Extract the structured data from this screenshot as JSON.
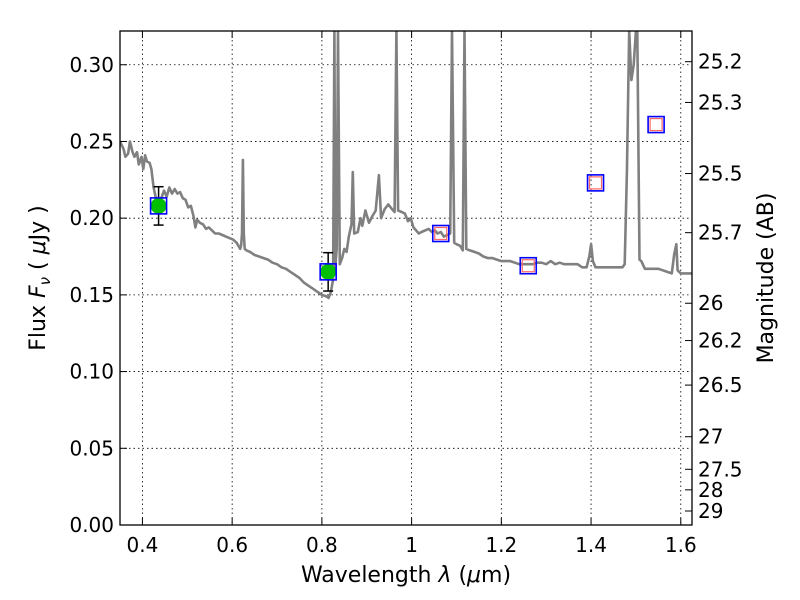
{
  "chart_data": {
    "type": "scatter",
    "title": "",
    "xlabel": {
      "prefix": "Wavelength ",
      "symbol": "λ",
      "unit_open": " (",
      "unit_mu": "μ",
      "unit_rest": "m)"
    },
    "ylabel": {
      "prefix": "Flux ",
      "symbol": "F",
      "sub": "ν",
      "unit_open": " ( ",
      "unit_mu": "μ",
      "unit_rest": "Jy )"
    },
    "ylabel_right": "Magnitude (AB)",
    "xlim": [
      0.35,
      1.625
    ],
    "ylim": [
      0.0,
      0.322
    ],
    "grid": true,
    "x_ticks": [
      {
        "v": 0.4,
        "label": "0.4"
      },
      {
        "v": 0.6,
        "label": "0.6"
      },
      {
        "v": 0.8,
        "label": "0.8"
      },
      {
        "v": 1.0,
        "label": "1"
      },
      {
        "v": 1.2,
        "label": "1.2"
      },
      {
        "v": 1.4,
        "label": "1.4"
      },
      {
        "v": 1.6,
        "label": "1.6"
      }
    ],
    "y_ticks": [
      {
        "v": 0.0,
        "label": "0.00"
      },
      {
        "v": 0.05,
        "label": "0.05"
      },
      {
        "v": 0.1,
        "label": "0.10"
      },
      {
        "v": 0.15,
        "label": "0.15"
      },
      {
        "v": 0.2,
        "label": "0.20"
      },
      {
        "v": 0.25,
        "label": "0.25"
      },
      {
        "v": 0.3,
        "label": "0.30"
      }
    ],
    "mag_ticks": [
      {
        "mag": 25.2,
        "label": "25.2"
      },
      {
        "mag": 25.3,
        "label": "25.3"
      },
      {
        "mag": 25.5,
        "label": "25.5"
      },
      {
        "mag": 25.7,
        "label": "25.7"
      },
      {
        "mag": 26.0,
        "label": "26"
      },
      {
        "mag": 26.2,
        "label": "26.2"
      },
      {
        "mag": 26.5,
        "label": "26.5"
      },
      {
        "mag": 27.0,
        "label": "27"
      },
      {
        "mag": 27.5,
        "label": "27.5"
      },
      {
        "mag": 28.0,
        "label": "28"
      },
      {
        "mag": 29.0,
        "label": "29"
      }
    ],
    "model_spectrum": {
      "color": "#808080",
      "points": [
        [
          0.35,
          0.25
        ],
        [
          0.358,
          0.245
        ],
        [
          0.362,
          0.24
        ],
        [
          0.368,
          0.242
        ],
        [
          0.372,
          0.25
        ],
        [
          0.378,
          0.243
        ],
        [
          0.382,
          0.24
        ],
        [
          0.388,
          0.243
        ],
        [
          0.392,
          0.235
        ],
        [
          0.398,
          0.24
        ],
        [
          0.402,
          0.232
        ],
        [
          0.406,
          0.241
        ],
        [
          0.41,
          0.237
        ],
        [
          0.416,
          0.236
        ],
        [
          0.42,
          0.232
        ],
        [
          0.425,
          0.22
        ],
        [
          0.43,
          0.213
        ],
        [
          0.436,
          0.209
        ],
        [
          0.442,
          0.213
        ],
        [
          0.448,
          0.218
        ],
        [
          0.454,
          0.214
        ],
        [
          0.46,
          0.22
        ],
        [
          0.466,
          0.216
        ],
        [
          0.472,
          0.219
        ],
        [
          0.478,
          0.216
        ],
        [
          0.484,
          0.217
        ],
        [
          0.49,
          0.213
        ],
        [
          0.496,
          0.212
        ],
        [
          0.502,
          0.207
        ],
        [
          0.508,
          0.208
        ],
        [
          0.514,
          0.201
        ],
        [
          0.518,
          0.194
        ],
        [
          0.522,
          0.199
        ],
        [
          0.528,
          0.197
        ],
        [
          0.535,
          0.196
        ],
        [
          0.542,
          0.193
        ],
        [
          0.548,
          0.194
        ],
        [
          0.555,
          0.192
        ],
        [
          0.562,
          0.19
        ],
        [
          0.57,
          0.19
        ],
        [
          0.578,
          0.189
        ],
        [
          0.586,
          0.188
        ],
        [
          0.594,
          0.187
        ],
        [
          0.602,
          0.186
        ],
        [
          0.61,
          0.184
        ],
        [
          0.618,
          0.18
        ],
        [
          0.62,
          0.182
        ],
        [
          0.622,
          0.19
        ],
        [
          0.624,
          0.238
        ],
        [
          0.626,
          0.19
        ],
        [
          0.628,
          0.18
        ],
        [
          0.632,
          0.179
        ],
        [
          0.64,
          0.178
        ],
        [
          0.65,
          0.176
        ],
        [
          0.66,
          0.175
        ],
        [
          0.67,
          0.174
        ],
        [
          0.68,
          0.173
        ],
        [
          0.69,
          0.171
        ],
        [
          0.7,
          0.17
        ],
        [
          0.71,
          0.168
        ],
        [
          0.72,
          0.167
        ],
        [
          0.73,
          0.165
        ],
        [
          0.74,
          0.163
        ],
        [
          0.75,
          0.161
        ],
        [
          0.76,
          0.158
        ],
        [
          0.77,
          0.156
        ],
        [
          0.78,
          0.154
        ],
        [
          0.79,
          0.152
        ],
        [
          0.8,
          0.15
        ],
        [
          0.81,
          0.149
        ],
        [
          0.815,
          0.148
        ],
        [
          0.82,
          0.152
        ],
        [
          0.825,
          0.16
        ],
        [
          0.828,
          0.322
        ],
        [
          0.83,
          0.168
        ],
        [
          0.833,
          0.18
        ],
        [
          0.836,
          0.322
        ],
        [
          0.84,
          0.17
        ],
        [
          0.845,
          0.174
        ],
        [
          0.85,
          0.18
        ],
        [
          0.855,
          0.178
        ],
        [
          0.86,
          0.188
        ],
        [
          0.866,
          0.196
        ],
        [
          0.869,
          0.23
        ],
        [
          0.872,
          0.19
        ],
        [
          0.88,
          0.191
        ],
        [
          0.886,
          0.2
        ],
        [
          0.89,
          0.195
        ],
        [
          0.897,
          0.205
        ],
        [
          0.905,
          0.197
        ],
        [
          0.912,
          0.201
        ],
        [
          0.92,
          0.205
        ],
        [
          0.927,
          0.228
        ],
        [
          0.932,
          0.2
        ],
        [
          0.94,
          0.206
        ],
        [
          0.948,
          0.209
        ],
        [
          0.956,
          0.206
        ],
        [
          0.962,
          0.204
        ],
        [
          0.966,
          0.322
        ],
        [
          0.97,
          0.205
        ],
        [
          0.978,
          0.204
        ],
        [
          0.985,
          0.203
        ],
        [
          0.992,
          0.198
        ],
        [
          0.998,
          0.2
        ],
        [
          1.004,
          0.194
        ],
        [
          1.01,
          0.192
        ],
        [
          1.016,
          0.19
        ],
        [
          1.022,
          0.191
        ],
        [
          1.03,
          0.192
        ],
        [
          1.038,
          0.193
        ],
        [
          1.045,
          0.191
        ],
        [
          1.052,
          0.192
        ],
        [
          1.058,
          0.19
        ],
        [
          1.065,
          0.191
        ],
        [
          1.072,
          0.188
        ],
        [
          1.08,
          0.189
        ],
        [
          1.086,
          0.19
        ],
        [
          1.09,
          0.322
        ],
        [
          1.095,
          0.184
        ],
        [
          1.1,
          0.183
        ],
        [
          1.108,
          0.182
        ],
        [
          1.114,
          0.179
        ],
        [
          1.118,
          0.322
        ],
        [
          1.122,
          0.18
        ],
        [
          1.13,
          0.179
        ],
        [
          1.14,
          0.178
        ],
        [
          1.15,
          0.177
        ],
        [
          1.16,
          0.175
        ],
        [
          1.17,
          0.174
        ],
        [
          1.18,
          0.174
        ],
        [
          1.19,
          0.173
        ],
        [
          1.2,
          0.172
        ],
        [
          1.21,
          0.172
        ],
        [
          1.22,
          0.172
        ],
        [
          1.23,
          0.171
        ],
        [
          1.24,
          0.17
        ],
        [
          1.25,
          0.17
        ],
        [
          1.26,
          0.17
        ],
        [
          1.27,
          0.17
        ],
        [
          1.28,
          0.171
        ],
        [
          1.29,
          0.171
        ],
        [
          1.3,
          0.17
        ],
        [
          1.31,
          0.172
        ],
        [
          1.32,
          0.17
        ],
        [
          1.33,
          0.171
        ],
        [
          1.34,
          0.17
        ],
        [
          1.35,
          0.17
        ],
        [
          1.36,
          0.17
        ],
        [
          1.37,
          0.17
        ],
        [
          1.38,
          0.168
        ],
        [
          1.39,
          0.168
        ],
        [
          1.396,
          0.175
        ],
        [
          1.4,
          0.183
        ],
        [
          1.404,
          0.172
        ],
        [
          1.41,
          0.168
        ],
        [
          1.42,
          0.168
        ],
        [
          1.43,
          0.168
        ],
        [
          1.44,
          0.168
        ],
        [
          1.45,
          0.168
        ],
        [
          1.46,
          0.168
        ],
        [
          1.47,
          0.168
        ],
        [
          1.475,
          0.17
        ],
        [
          1.48,
          0.23
        ],
        [
          1.485,
          0.322
        ],
        [
          1.49,
          0.29
        ],
        [
          1.495,
          0.3
        ],
        [
          1.5,
          0.322
        ],
        [
          1.503,
          0.322
        ],
        [
          1.508,
          0.173
        ],
        [
          1.512,
          0.172
        ],
        [
          1.52,
          0.167
        ],
        [
          1.53,
          0.167
        ],
        [
          1.54,
          0.167
        ],
        [
          1.55,
          0.167
        ],
        [
          1.56,
          0.166
        ],
        [
          1.57,
          0.165
        ],
        [
          1.58,
          0.164
        ],
        [
          1.585,
          0.176
        ],
        [
          1.59,
          0.183
        ],
        [
          1.593,
          0.166
        ],
        [
          1.6,
          0.164
        ],
        [
          1.61,
          0.164
        ],
        [
          1.625,
          0.164
        ]
      ]
    },
    "observed": {
      "color": "#00bf00",
      "points": [
        {
          "x": 0.436,
          "y": 0.208,
          "err": 0.0125
        },
        {
          "x": 0.814,
          "y": 0.165,
          "err": 0.0125
        }
      ]
    },
    "model_photometry_color": "#0000ff",
    "model_photometry": [
      {
        "x": 0.436,
        "y": 0.208
      },
      {
        "x": 0.814,
        "y": 0.165
      },
      {
        "x": 1.065,
        "y": 0.19
      },
      {
        "x": 1.26,
        "y": 0.169
      },
      {
        "x": 1.41,
        "y": 0.223
      },
      {
        "x": 1.545,
        "y": 0.261
      }
    ],
    "upper_limit_color": "#ff6666",
    "upper_limits": [
      {
        "x": 1.065,
        "y": 0.19
      },
      {
        "x": 1.26,
        "y": 0.169
      },
      {
        "x": 1.41,
        "y": 0.223
      },
      {
        "x": 1.545,
        "y": 0.261
      }
    ]
  }
}
